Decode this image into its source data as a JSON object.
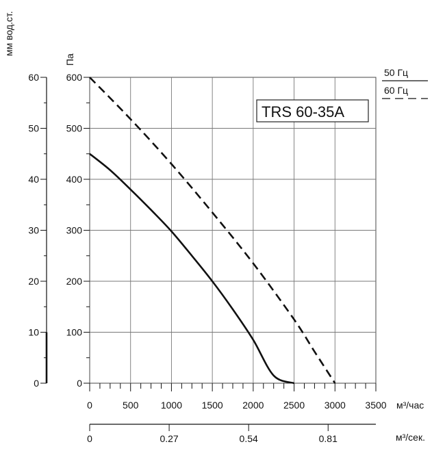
{
  "chart_data": {
    "type": "line",
    "model_label": "TRS 60-35A",
    "x": {
      "unit_label": "м³/час",
      "range": [
        0,
        3500
      ],
      "ticks": [
        "0",
        "500",
        "1000",
        "1500",
        "2000",
        "2500",
        "3000",
        "3500"
      ]
    },
    "x2": {
      "unit_label": "м³/сек.",
      "range": [
        0,
        0.9722
      ],
      "ticks": [
        "0",
        "0.27",
        "0.54",
        "0.81"
      ]
    },
    "y": {
      "unit_label": "Па",
      "range": [
        0,
        600
      ],
      "ticks": [
        "0",
        "100",
        "200",
        "300",
        "400",
        "500",
        "600"
      ]
    },
    "y2": {
      "unit_label": "мм вод.ст.",
      "range": [
        0,
        60
      ],
      "ticks": [
        "0",
        "10",
        "20",
        "30",
        "40",
        "50",
        "60"
      ]
    },
    "grid": true,
    "legend": {
      "position": "top-right",
      "entries": [
        {
          "label": "50 Гц",
          "style": "solid"
        },
        {
          "label": "60 Гц",
          "style": "dashed"
        }
      ]
    },
    "series": [
      {
        "name": "50 Гц",
        "style": "solid",
        "points": [
          [
            0,
            450
          ],
          [
            250,
            418
          ],
          [
            500,
            380
          ],
          [
            750,
            340
          ],
          [
            1000,
            298
          ],
          [
            1250,
            250
          ],
          [
            1500,
            200
          ],
          [
            1750,
            145
          ],
          [
            2000,
            85
          ],
          [
            2250,
            15
          ],
          [
            2500,
            0
          ]
        ]
      },
      {
        "name": "60 Гц",
        "style": "dashed",
        "points": [
          [
            0,
            600
          ],
          [
            500,
            518
          ],
          [
            1000,
            430
          ],
          [
            1500,
            335
          ],
          [
            2000,
            235
          ],
          [
            2500,
            125
          ],
          [
            2750,
            62
          ],
          [
            3000,
            0
          ]
        ]
      }
    ]
  }
}
